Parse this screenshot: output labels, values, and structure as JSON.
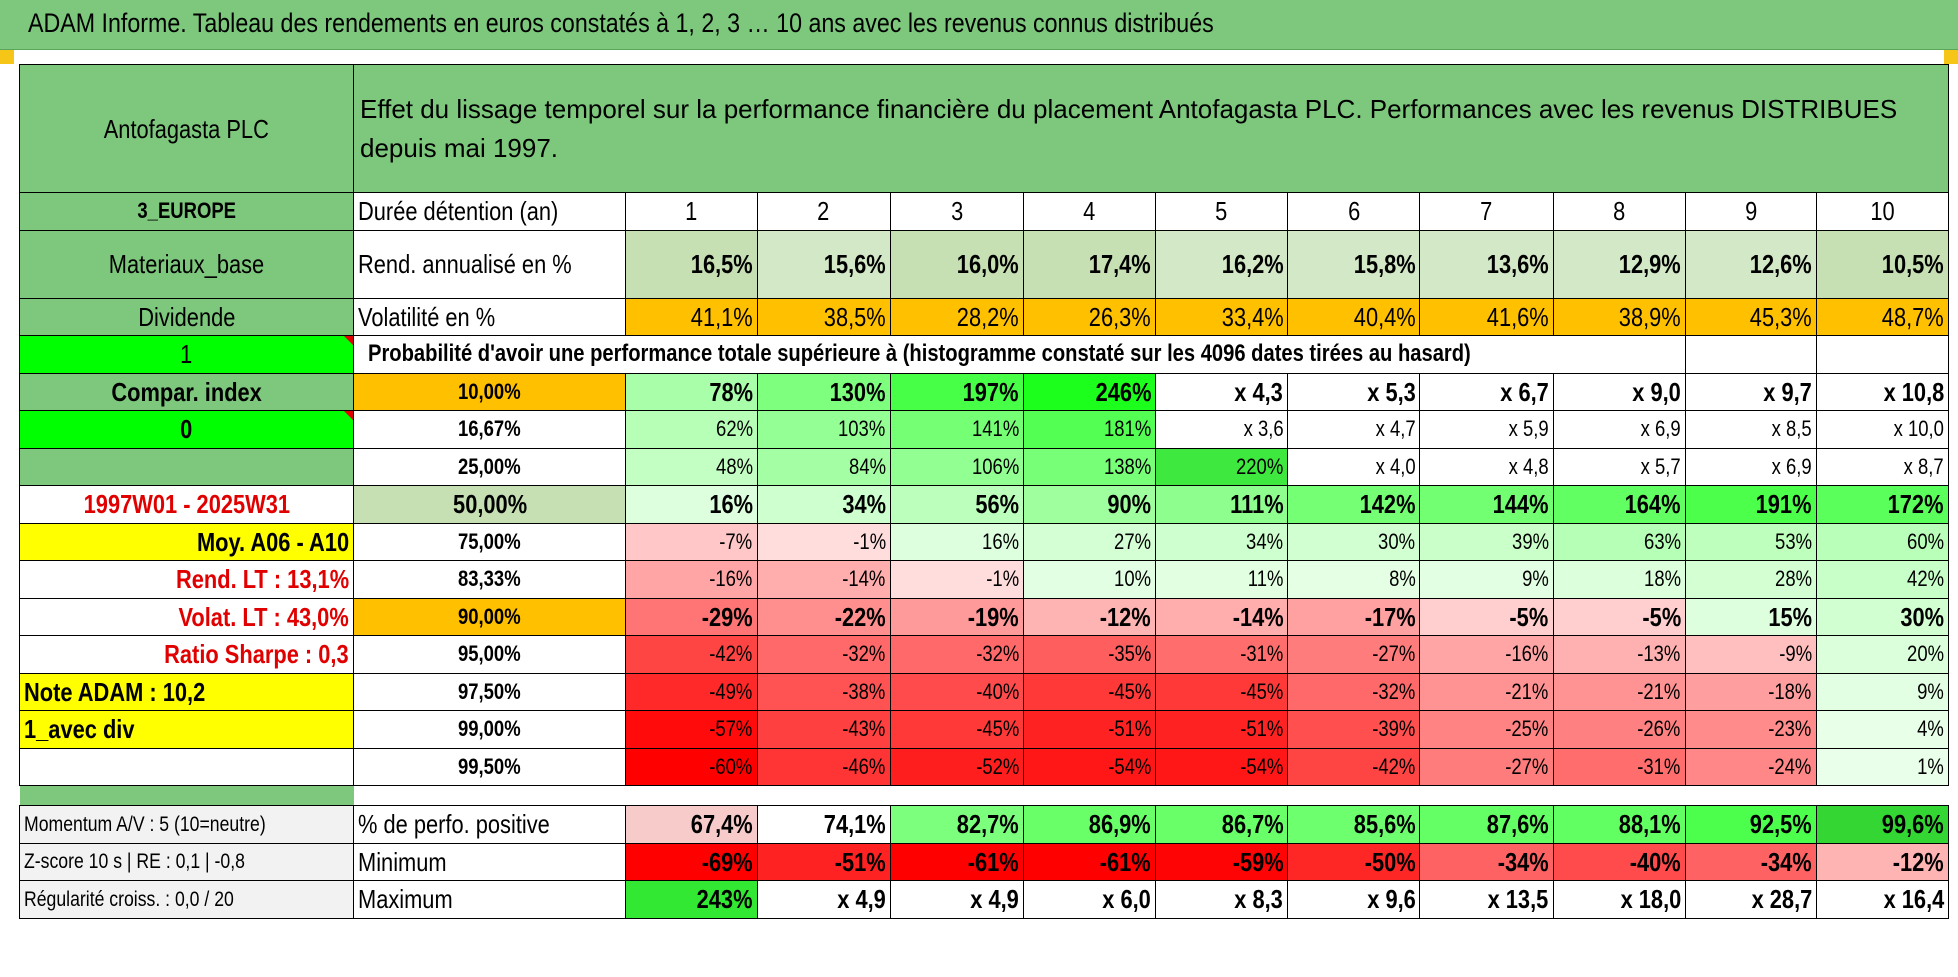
{
  "title": "ADAM Informe. Tableau des rendements en euros constatés à 1, 2, 3 … 10 ans avec les revenus connus distribués",
  "asset_name": "Antofagasta PLC",
  "description": "Effet du lissage temporel sur la performance financière du placement Antofagasta PLC. Performances avec les revenus DISTRIBUES depuis mai 1997.",
  "left": {
    "region": "3_EUROPE",
    "sector": "Materiaux_base",
    "revenue_type": "Dividende",
    "flag1": "1",
    "compar_label": "Compar. index",
    "flag2": "0",
    "period": "1997W01 - 2025W31",
    "moy": "Moy. A06 - A10",
    "rend_lt": "Rend. LT :    13,1%",
    "volat_lt": "Volat. LT :    43,0%",
    "sharpe": "Ratio Sharpe :     0,3",
    "note": "Note ADAM : 10,2",
    "avec_div": "1_avec div"
  },
  "header": {
    "duration_label": "Durée détention (an)",
    "years": [
      "1",
      "2",
      "3",
      "4",
      "5",
      "6",
      "7",
      "8",
      "9",
      "10"
    ]
  },
  "rend": {
    "label": "Rend. annualisé en %",
    "values": [
      "16,5%",
      "15,6%",
      "16,0%",
      "17,4%",
      "16,2%",
      "15,8%",
      "13,6%",
      "12,9%",
      "12,6%",
      "10,5%"
    ]
  },
  "vol": {
    "label": "Volatilité en %",
    "values": [
      "41,1%",
      "38,5%",
      "28,2%",
      "26,3%",
      "33,4%",
      "40,4%",
      "41,6%",
      "38,9%",
      "45,3%",
      "48,7%"
    ]
  },
  "prob_title": "Probabilité d'avoir une performance totale supérieure à (histogramme constaté sur les 4096 dates tirées au hasard)",
  "prob_rows": [
    {
      "pct": "10,00%",
      "values": [
        "78%",
        "130%",
        "197%",
        "246%",
        "x 4,3",
        "x 5,3",
        "x 6,7",
        "x 9,0",
        "x 9,7",
        "x 10,8"
      ]
    },
    {
      "pct": "16,67%",
      "values": [
        "62%",
        "103%",
        "141%",
        "181%",
        "x 3,6",
        "x 4,7",
        "x 5,9",
        "x 6,9",
        "x 8,5",
        "x 10,0"
      ]
    },
    {
      "pct": "25,00%",
      "values": [
        "48%",
        "84%",
        "106%",
        "138%",
        "220%",
        "x 4,0",
        "x 4,8",
        "x 5,7",
        "x 6,9",
        "x 8,7"
      ]
    },
    {
      "pct": "50,00%",
      "values": [
        "16%",
        "34%",
        "56%",
        "90%",
        "111%",
        "142%",
        "144%",
        "164%",
        "191%",
        "172%"
      ]
    },
    {
      "pct": "75,00%",
      "values": [
        "-7%",
        "-1%",
        "16%",
        "27%",
        "34%",
        "30%",
        "39%",
        "63%",
        "53%",
        "60%"
      ]
    },
    {
      "pct": "83,33%",
      "values": [
        "-16%",
        "-14%",
        "-1%",
        "10%",
        "11%",
        "8%",
        "9%",
        "18%",
        "28%",
        "42%"
      ]
    },
    {
      "pct": "90,00%",
      "values": [
        "-29%",
        "-22%",
        "-19%",
        "-12%",
        "-14%",
        "-17%",
        "-5%",
        "-5%",
        "15%",
        "30%"
      ]
    },
    {
      "pct": "95,00%",
      "values": [
        "-42%",
        "-32%",
        "-32%",
        "-35%",
        "-31%",
        "-27%",
        "-16%",
        "-13%",
        "-9%",
        "20%"
      ]
    },
    {
      "pct": "97,50%",
      "values": [
        "-49%",
        "-38%",
        "-40%",
        "-45%",
        "-45%",
        "-32%",
        "-21%",
        "-21%",
        "-18%",
        "9%"
      ]
    },
    {
      "pct": "99,00%",
      "values": [
        "-57%",
        "-43%",
        "-45%",
        "-51%",
        "-51%",
        "-39%",
        "-25%",
        "-26%",
        "-23%",
        "4%"
      ]
    },
    {
      "pct": "99,50%",
      "values": [
        "-60%",
        "-46%",
        "-52%",
        "-54%",
        "-54%",
        "-42%",
        "-27%",
        "-31%",
        "-24%",
        "1%"
      ]
    }
  ],
  "bottom": [
    {
      "left": "Momentum A/V : 5 (10=neutre)",
      "label": "% de perfo. positive",
      "values": [
        "67,4%",
        "74,1%",
        "82,7%",
        "86,9%",
        "86,7%",
        "85,6%",
        "87,6%",
        "88,1%",
        "92,5%",
        "99,6%"
      ]
    },
    {
      "left": "Z-score 10 s | RE : 0,1 | -0,8",
      "label": "Minimum",
      "values": [
        "-69%",
        "-51%",
        "-61%",
        "-61%",
        "-59%",
        "-50%",
        "-34%",
        "-40%",
        "-34%",
        "-12%"
      ]
    },
    {
      "left": "Régularité croiss. : 0,0 / 20",
      "label": "Maximum",
      "values": [
        "243%",
        "x 4,9",
        "x 4,9",
        "x 6,0",
        "x 8,3",
        "x 9,6",
        "x 13,5",
        "x 18,0",
        "x 28,7",
        "x 16,4"
      ]
    }
  ],
  "colors": {
    "header_green": "#7dc87d",
    "bright_green": "#00ff00",
    "yellow": "#ffff00",
    "orange": "#ffc000",
    "red_text": "#e00000"
  }
}
